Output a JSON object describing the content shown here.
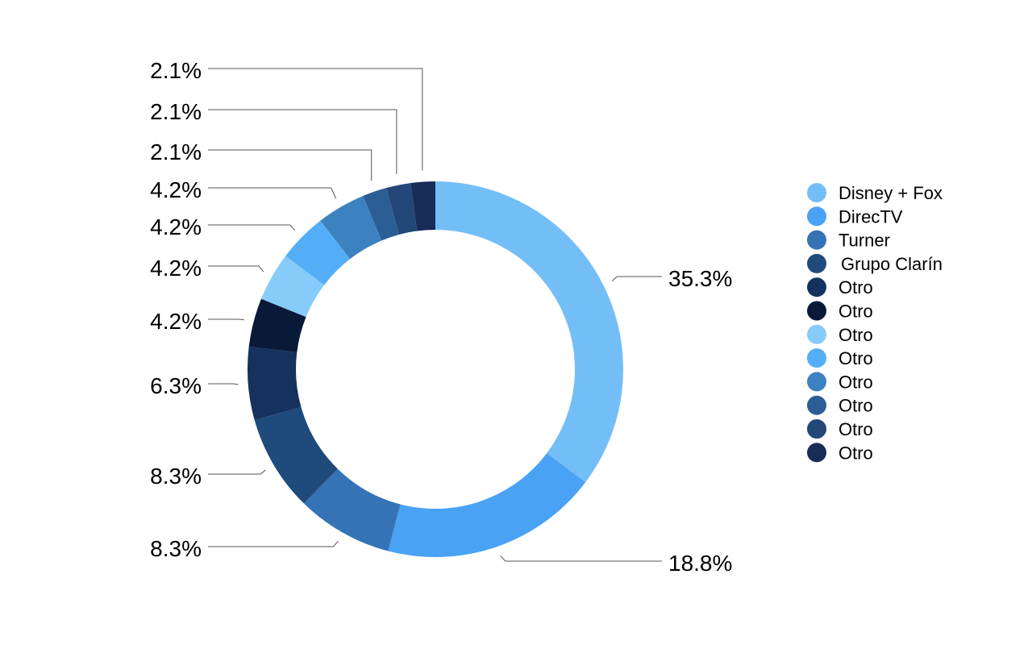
{
  "chart_data": {
    "type": "pie",
    "variant": "donut",
    "title": "",
    "legend_position": "right",
    "slices": [
      {
        "name": "Disney + Fox",
        "value": 35.3,
        "label": "35.3%",
        "color": "#74BEF8"
      },
      {
        "name": "DirecTV",
        "value": 18.8,
        "label": "18.8%",
        "color": "#4AA2F5"
      },
      {
        "name": "Turner",
        "value": 8.3,
        "label": "8.3%",
        "color": "#3573B6"
      },
      {
        "name": "Grupo Clarín",
        "value": 8.3,
        "label": "8.3%",
        "color": "#1F4A7C"
      },
      {
        "name": "Otro",
        "value": 6.3,
        "label": "6.3%",
        "color": "#15325E"
      },
      {
        "name": "Otro",
        "value": 4.2,
        "label": "4.2%",
        "color": "#081A38"
      },
      {
        "name": "Otro",
        "value": 4.2,
        "label": "4.2%",
        "color": "#86CBF9"
      },
      {
        "name": "Otro",
        "value": 4.2,
        "label": "4.2%",
        "color": "#54AEF7"
      },
      {
        "name": "Otro",
        "value": 4.2,
        "label": "4.2%",
        "color": "#3D82C0"
      },
      {
        "name": "Otro",
        "value": 2.1,
        "label": "2.1%",
        "color": "#2B5E94"
      },
      {
        "name": "Otro",
        "value": 2.1,
        "label": "2.1%",
        "color": "#224778"
      },
      {
        "name": "Otro",
        "value": 2.1,
        "label": "2.1%",
        "color": "#172C57"
      }
    ]
  }
}
